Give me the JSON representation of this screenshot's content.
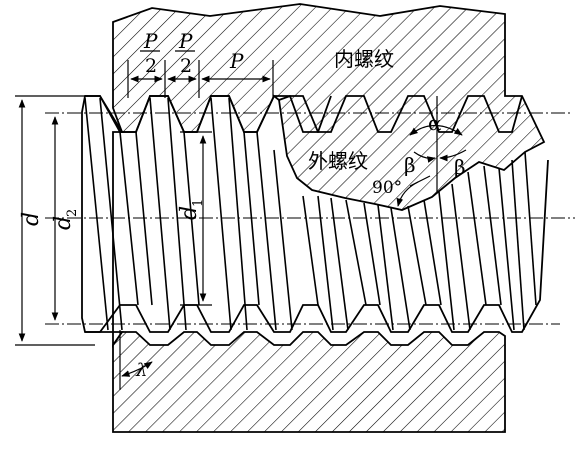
{
  "labels": {
    "p_half_num_1": "P",
    "p_half_den_1": "2",
    "p_half_num_2": "P",
    "p_half_den_2": "2",
    "pitch": "P",
    "internal_thread": "内螺纹",
    "external_thread": "外螺纹",
    "alpha": "α",
    "beta_left": "β",
    "beta_right": "β",
    "right_angle": "90°",
    "major_diameter": "d",
    "pitch_diameter_base": "d",
    "pitch_diameter_sub": "2",
    "minor_diameter_base": "d",
    "minor_diameter_sub": "1",
    "lead_angle": "λ"
  },
  "colors": {
    "line": "#000000",
    "background": "#ffffff"
  }
}
